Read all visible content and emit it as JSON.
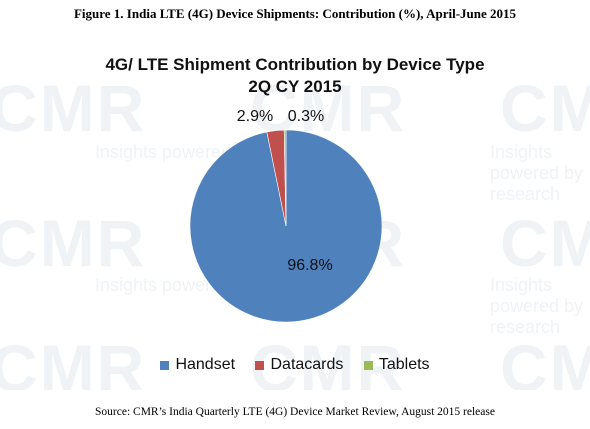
{
  "figure_title": "Figure 1. India LTE (4G) Device Shipments: Contribution (%), April-June 2015",
  "source_note": "Source: CMR’s India Quarterly LTE (4G) Device Market Review, August 2015 release",
  "watermark": {
    "brand": "CMR",
    "tagline": "Insights powered by research"
  },
  "chart_data": {
    "type": "pie",
    "title_line1": "4G/ LTE Shipment Contribution by Device Type",
    "title_line2": "2Q CY 2015",
    "categories": [
      "Handset",
      "Datacards",
      "Tablets"
    ],
    "values": [
      96.8,
      2.9,
      0.3
    ],
    "labels": [
      "96.8%",
      "2.9%",
      "0.3%"
    ],
    "colors": [
      "#4f81bd",
      "#c0504d",
      "#9bbb59"
    ],
    "legend_position": "bottom"
  }
}
